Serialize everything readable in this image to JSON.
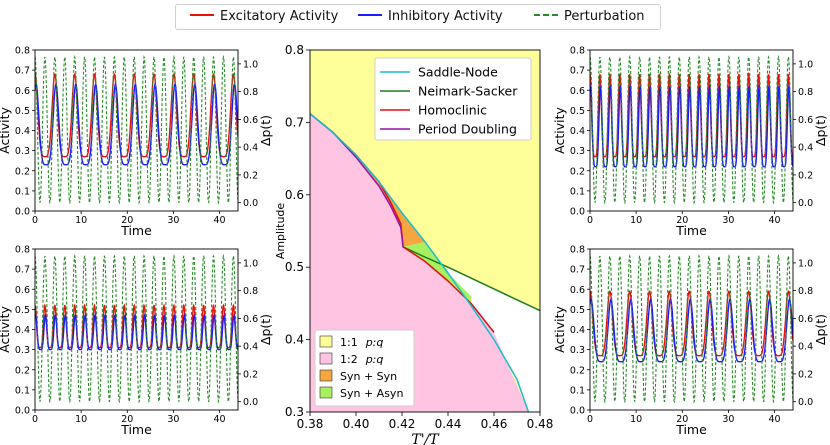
{
  "legend_top": {
    "excitatory": {
      "label": "Excitatory Activity",
      "color": "#e8120c"
    },
    "inhibitory": {
      "label": "Inhibitory Activity",
      "color": "#1a1aff"
    },
    "perturbation": {
      "label": "Perturbation",
      "color": "#2a8a2a"
    }
  },
  "chart_data": [
    {
      "type": "line",
      "panel": "top-left",
      "xlabel": "Time",
      "ylabel": "Activity",
      "y2label": "Δp(t)",
      "xlim": [
        0,
        44
      ],
      "ylim": [
        0,
        0.8
      ],
      "y2lim": [
        -0.06,
        1.1
      ],
      "xticks": [
        0,
        10,
        20,
        30,
        40
      ],
      "yticks": [
        0.0,
        0.1,
        0.2,
        0.3,
        0.4,
        0.5,
        0.6,
        0.7,
        0.8
      ],
      "y2ticks": [
        0.0,
        0.2,
        0.4,
        0.6,
        0.8,
        1.0
      ],
      "series": [
        {
          "name": "Excitatory Activity",
          "period": 4.3,
          "min": 0.27,
          "max": 0.68
        },
        {
          "name": "Inhibitory Activity",
          "period": 4.3,
          "min": 0.23,
          "max": 0.63
        },
        {
          "name": "Perturbation",
          "period": 2.15,
          "min": 0.0,
          "max": 1.05
        }
      ]
    },
    {
      "type": "line",
      "panel": "bottom-left",
      "xlabel": "Time",
      "ylabel": "Activity",
      "y2label": "Δp(t)",
      "xlim": [
        0,
        44
      ],
      "ylim": [
        0,
        0.8
      ],
      "y2lim": [
        -0.06,
        1.1
      ],
      "xticks": [
        0,
        10,
        20,
        30,
        40
      ],
      "yticks": [
        0.0,
        0.1,
        0.2,
        0.3,
        0.4,
        0.5,
        0.6,
        0.7,
        0.8
      ],
      "y2ticks": [
        0.0,
        0.2,
        0.4,
        0.6,
        0.8,
        1.0
      ],
      "series": [
        {
          "name": "Excitatory Activity",
          "period": 2.15,
          "min": 0.31,
          "max": 0.52
        },
        {
          "name": "Inhibitory Activity",
          "period": 2.15,
          "min": 0.3,
          "max": 0.47
        },
        {
          "name": "Perturbation",
          "period": 2.15,
          "min": 0.0,
          "max": 1.05
        }
      ]
    },
    {
      "type": "line",
      "panel": "top-right",
      "xlabel": "Time",
      "ylabel": "Activity",
      "y2label": "Δp(t)",
      "xlim": [
        0,
        44
      ],
      "ylim": [
        0,
        0.8
      ],
      "y2lim": [
        -0.06,
        1.1
      ],
      "xticks": [
        0,
        10,
        20,
        30,
        40
      ],
      "yticks": [
        0.0,
        0.1,
        0.2,
        0.3,
        0.4,
        0.5,
        0.6,
        0.7,
        0.8
      ],
      "y2ticks": [
        0.0,
        0.2,
        0.4,
        0.6,
        0.8,
        1.0
      ],
      "series": [
        {
          "name": "Excitatory Activity",
          "period": 2.15,
          "min": 0.27,
          "max": 0.68
        },
        {
          "name": "Inhibitory Activity",
          "period": 2.15,
          "min": 0.22,
          "max": 0.62
        },
        {
          "name": "Perturbation",
          "period": 2.15,
          "min": 0.0,
          "max": 1.05
        }
      ]
    },
    {
      "type": "line",
      "panel": "bottom-right",
      "xlabel": "Time",
      "ylabel": "Activity",
      "y2label": "Δp(t)",
      "xlim": [
        0,
        44
      ],
      "ylim": [
        0,
        0.8
      ],
      "y2lim": [
        -0.06,
        1.1
      ],
      "xticks": [
        0,
        10,
        20,
        30,
        40
      ],
      "yticks": [
        0.0,
        0.1,
        0.2,
        0.3,
        0.4,
        0.5,
        0.6,
        0.7,
        0.8
      ],
      "y2ticks": [
        0.0,
        0.2,
        0.4,
        0.6,
        0.8,
        1.0
      ],
      "series": [
        {
          "name": "Excitatory Activity",
          "period": 4.3,
          "min": 0.27,
          "max": 0.59
        },
        {
          "name": "Inhibitory Activity",
          "period": 4.3,
          "min": 0.24,
          "max": 0.55
        },
        {
          "name": "Perturbation",
          "period": 2.15,
          "min": 0.0,
          "max": 1.05
        }
      ]
    },
    {
      "type": "area",
      "panel": "center",
      "title": "",
      "xlabel": "T'/T",
      "ylabel": "Amplitude",
      "xlim": [
        0.38,
        0.48
      ],
      "ylim": [
        0.3,
        0.8
      ],
      "xticks": [
        "0.38",
        "0.40",
        "0.42",
        "0.44",
        "0.46",
        "0.48"
      ],
      "yticks": [
        "0.3",
        "0.4",
        "0.5",
        "0.6",
        "0.7",
        "0.8"
      ],
      "curves": [
        {
          "name": "Saddle-Node",
          "color": "#17becf",
          "x": [
            0.38,
            0.39,
            0.4,
            0.41,
            0.42,
            0.43,
            0.44,
            0.45,
            0.46,
            0.47,
            0.475
          ],
          "y": [
            0.712,
            0.686,
            0.655,
            0.618,
            0.575,
            0.535,
            0.492,
            0.447,
            0.4,
            0.345,
            0.3
          ]
        },
        {
          "name": "Neimark-Sacker",
          "color": "#1e7d1e",
          "x": [
            0.4205,
            0.43,
            0.44,
            0.45,
            0.46,
            0.47,
            0.48
          ],
          "y": [
            0.528,
            0.514,
            0.5,
            0.485,
            0.47,
            0.455,
            0.44
          ]
        },
        {
          "name": "Homoclinic",
          "color": "#e01010",
          "x": [
            0.38,
            0.39,
            0.4,
            0.41,
            0.415,
            0.4195,
            0.4205,
            0.43,
            0.44,
            0.45,
            0.46
          ],
          "y": [
            0.712,
            0.686,
            0.655,
            0.618,
            0.59,
            0.56,
            0.528,
            0.508,
            0.481,
            0.45,
            0.41
          ]
        },
        {
          "name": "Period Doubling",
          "color": "#9a10a8",
          "x": [
            0.38,
            0.39,
            0.4,
            0.41,
            0.415,
            0.4195,
            0.4205
          ],
          "y": [
            0.712,
            0.686,
            0.652,
            0.612,
            0.585,
            0.555,
            0.528
          ]
        }
      ],
      "regions": [
        {
          "name": "1:1  p:q",
          "color": "#ffff99"
        },
        {
          "name": "1:2  p:q",
          "color": "#ffc4e1"
        },
        {
          "name": "Syn + Syn",
          "color": "#f5a640"
        },
        {
          "name": "Syn + Asyn",
          "color": "#a8f060"
        }
      ]
    }
  ]
}
